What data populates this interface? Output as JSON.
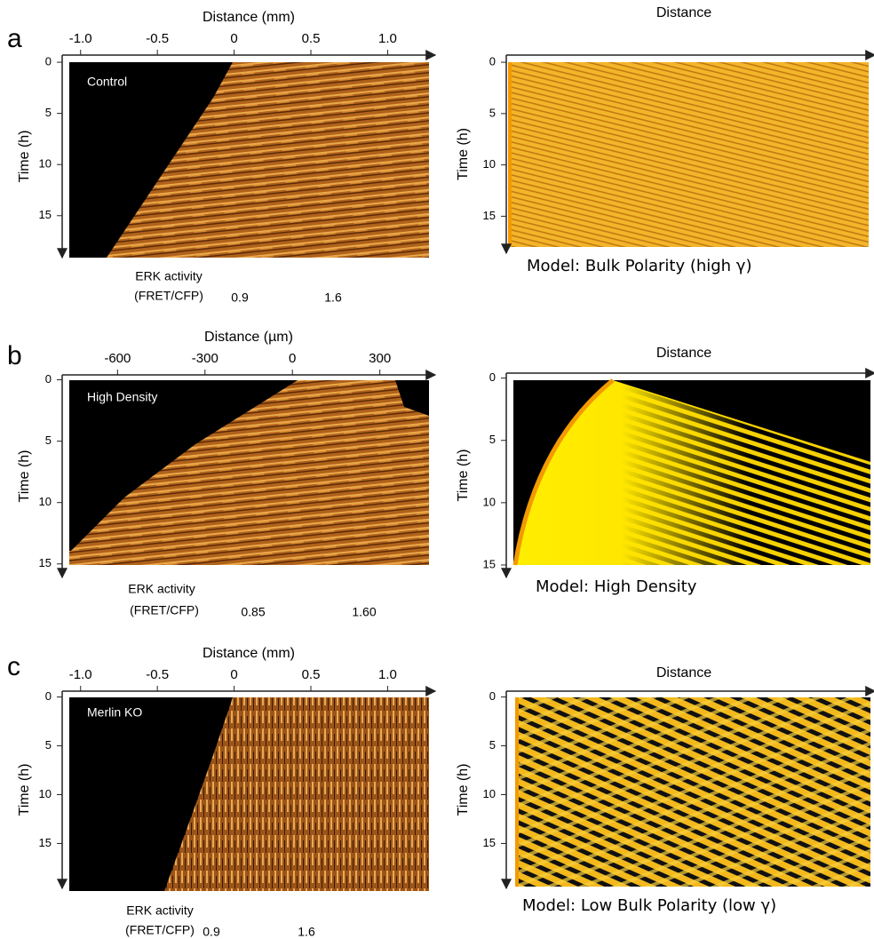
{
  "panels": [
    {
      "letter": "a",
      "experiment": {
        "x_label": "Distance (mm)",
        "xlim": [
          -1.12,
          1.31
        ],
        "xticks": [
          {
            "value": -1,
            "label": "-1.0"
          },
          {
            "value": -0.5,
            "label": "-0.5"
          },
          0,
          {
            "value": 0.5,
            "label": "0.5"
          },
          {
            "value": 1,
            "label": "1.0"
          }
        ],
        "y_label": "Time (h)",
        "ylim": [
          -0.7,
          19.1
        ],
        "yticks": [
          0,
          5,
          10,
          15
        ],
        "condition": "Control",
        "colorbar": {
          "label": [
            "ERK activity",
            "(FRET/CFP)"
          ],
          "min": "0.9",
          "max": "1.6"
        }
      },
      "model": {
        "x_label": "Distance",
        "y_label": "Time (h)",
        "ylim": [
          -0.7,
          18.6
        ],
        "yticks": [
          0,
          5,
          10,
          15
        ],
        "caption": "Model: Bulk Polarity (high γ)"
      }
    },
    {
      "letter": "b",
      "experiment": {
        "x_label": "Distance (µm)",
        "xlim": [
          -790,
          490
        ],
        "xticks": [
          -600,
          -300,
          0,
          300
        ],
        "y_label": "Time (h)",
        "ylim": [
          -0.4,
          16.1
        ],
        "yticks": [
          0,
          5,
          10,
          15
        ],
        "condition": "High Density",
        "colorbar": {
          "label": [
            "ERK activity",
            "(FRET/CFP)"
          ],
          "min": "0.85",
          "max": "1.60"
        }
      },
      "model": {
        "x_label": "Distance",
        "y_label": "Time (h)",
        "ylim": [
          -0.4,
          16.0
        ],
        "yticks": [
          0,
          5,
          10,
          15
        ],
        "caption": "Model: High Density"
      }
    },
    {
      "letter": "c",
      "experiment": {
        "x_label": "Distance (mm)",
        "xlim": [
          -1.12,
          1.31
        ],
        "xticks": [
          {
            "value": -1,
            "label": "-1.0"
          },
          {
            "value": -0.5,
            "label": "-0.5"
          },
          0,
          {
            "value": 0.5,
            "label": "0.5"
          },
          {
            "value": 1,
            "label": "1.0"
          }
        ],
        "y_label": "Time (h)",
        "ylim": [
          -0.6,
          19.6
        ],
        "yticks": [
          0,
          5,
          10,
          15
        ],
        "condition": "Merlin KO",
        "colorbar": {
          "label": [
            "ERK activity",
            "(FRET/CFP)"
          ],
          "min": "0.9",
          "max": "1.6"
        }
      },
      "model": {
        "x_label": "Distance",
        "y_label": "Time (h)",
        "ylim": [
          -0.6,
          19.6
        ],
        "yticks": [
          0,
          5,
          10,
          15
        ],
        "caption": "Model: Low Bulk Polarity (low γ)"
      }
    }
  ]
}
